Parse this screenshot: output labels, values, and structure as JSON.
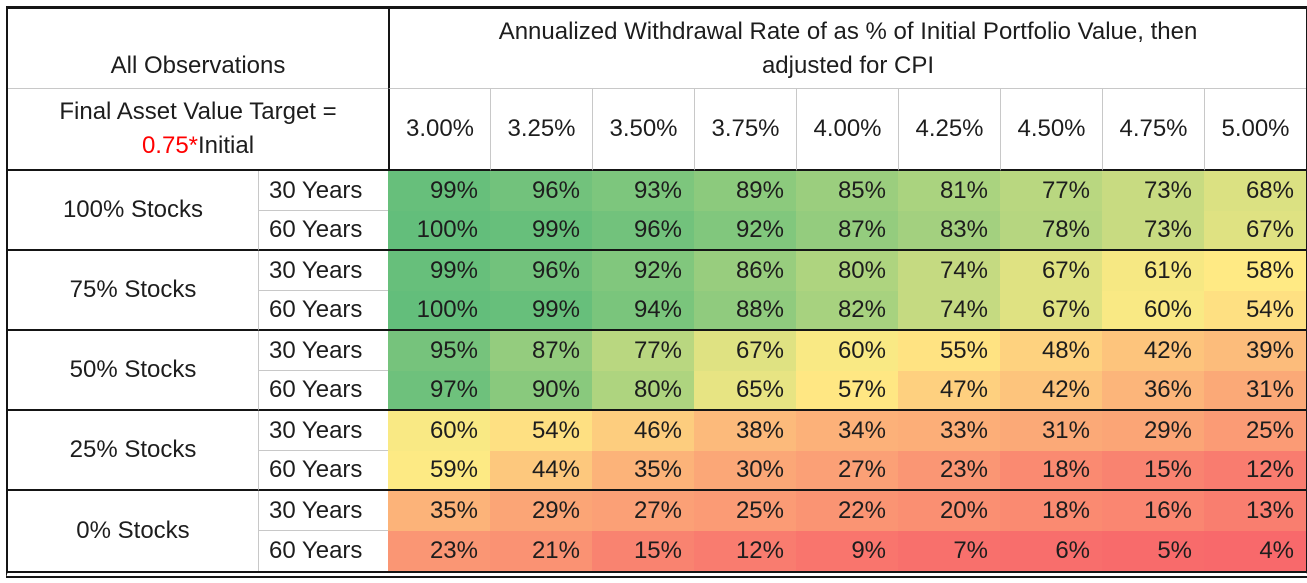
{
  "chart_data": {
    "type": "heatmap",
    "title_line1": "Annualized Withdrawal Rate of as % of Initial Portfolio Value, then",
    "title_line2": "adjusted for CPI",
    "corner_label": "All Observations",
    "subtitle_line1": "Final Asset Value Target =",
    "subtitle_red": "0.75*",
    "subtitle_suffix": "Initial",
    "columns": [
      "3.00%",
      "3.25%",
      "3.50%",
      "3.75%",
      "4.00%",
      "4.25%",
      "4.50%",
      "4.75%",
      "5.00%"
    ],
    "row_groups": [
      {
        "label": "100% Stocks",
        "rows": [
          {
            "period": "30 Years",
            "values": [
              99,
              96,
              93,
              89,
              85,
              81,
              77,
              73,
              68
            ]
          },
          {
            "period": "60 Years",
            "values": [
              100,
              99,
              96,
              92,
              87,
              83,
              78,
              73,
              67
            ]
          }
        ]
      },
      {
        "label": "75% Stocks",
        "rows": [
          {
            "period": "30 Years",
            "values": [
              99,
              96,
              92,
              86,
              80,
              74,
              67,
              61,
              58
            ]
          },
          {
            "period": "60 Years",
            "values": [
              100,
              99,
              94,
              88,
              82,
              74,
              67,
              60,
              54
            ]
          }
        ]
      },
      {
        "label": "50% Stocks",
        "rows": [
          {
            "period": "30 Years",
            "values": [
              95,
              87,
              77,
              67,
              60,
              55,
              48,
              42,
              39
            ]
          },
          {
            "period": "60 Years",
            "values": [
              97,
              90,
              80,
              65,
              57,
              47,
              42,
              36,
              31
            ]
          }
        ]
      },
      {
        "label": "25% Stocks",
        "rows": [
          {
            "period": "30 Years",
            "values": [
              60,
              54,
              46,
              38,
              34,
              33,
              31,
              29,
              25
            ]
          },
          {
            "period": "60 Years",
            "values": [
              59,
              44,
              35,
              30,
              27,
              23,
              18,
              15,
              12
            ]
          }
        ]
      },
      {
        "label": "0% Stocks",
        "rows": [
          {
            "period": "30 Years",
            "values": [
              35,
              29,
              27,
              25,
              22,
              20,
              18,
              16,
              13
            ]
          },
          {
            "period": "60 Years",
            "values": [
              23,
              21,
              15,
              12,
              9,
              7,
              6,
              5,
              4
            ]
          }
        ]
      }
    ],
    "value_suffix": "%",
    "color_scale": {
      "min": {
        "value": 4,
        "color": "#F8696B"
      },
      "mid": {
        "value": 58.5,
        "color": "#FFEB84"
      },
      "max": {
        "value": 100,
        "color": "#63BE7B"
      }
    },
    "text_color": "#1d1d1d",
    "accent_red": "#FF0000",
    "layout": {
      "legend": "none",
      "grid": "group-separators"
    }
  }
}
